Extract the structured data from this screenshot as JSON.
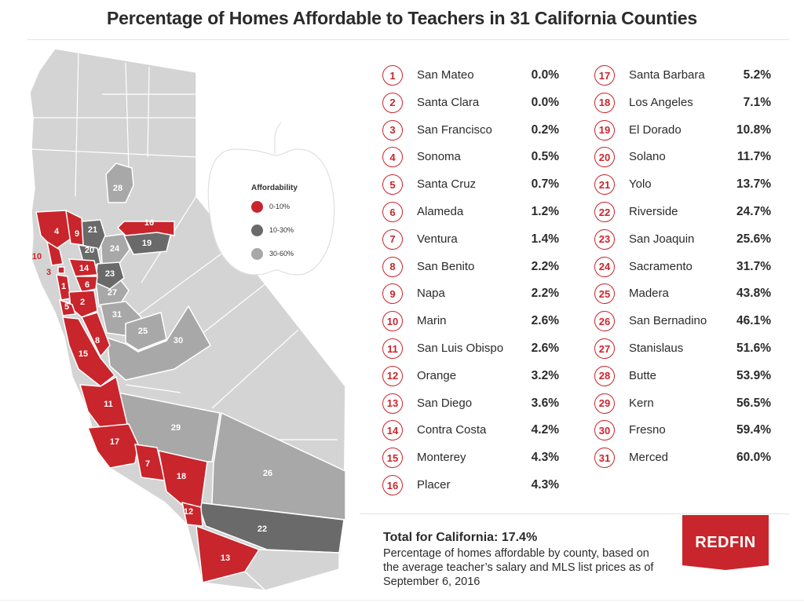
{
  "title": "Percentage of Homes Affordable to Teachers in 31 California Counties",
  "legend": {
    "title": "Affordability",
    "items": [
      {
        "label": "0-10%",
        "color": "#c9252c"
      },
      {
        "label": "10-30%",
        "color": "#6a6a6a"
      },
      {
        "label": "30-60%",
        "color": "#a8a8a8"
      }
    ],
    "icon": "apple-outline-icon"
  },
  "colors": {
    "accent": "#c9252c",
    "land": "#d4d4d4",
    "mid_gray": "#a8a8a8",
    "dark_gray": "#6a6a6a"
  },
  "counties": [
    {
      "rank": "1",
      "name": "San Mateo",
      "pct": "0.0%"
    },
    {
      "rank": "2",
      "name": "Santa Clara",
      "pct": "0.0%"
    },
    {
      "rank": "3",
      "name": "San Francisco",
      "pct": "0.2%"
    },
    {
      "rank": "4",
      "name": "Sonoma",
      "pct": "0.5%"
    },
    {
      "rank": "5",
      "name": "Santa Cruz",
      "pct": "0.7%"
    },
    {
      "rank": "6",
      "name": "Alameda",
      "pct": "1.2%"
    },
    {
      "rank": "7",
      "name": "Ventura",
      "pct": "1.4%"
    },
    {
      "rank": "8",
      "name": "San Benito",
      "pct": "2.2%"
    },
    {
      "rank": "9",
      "name": "Napa",
      "pct": "2.2%"
    },
    {
      "rank": "10",
      "name": "Marin",
      "pct": "2.6%"
    },
    {
      "rank": "11",
      "name": "San Luis Obispo",
      "pct": "2.6%"
    },
    {
      "rank": "12",
      "name": "Orange",
      "pct": "3.2%"
    },
    {
      "rank": "13",
      "name": "San Diego",
      "pct": "3.6%"
    },
    {
      "rank": "14",
      "name": "Contra Costa",
      "pct": "4.2%"
    },
    {
      "rank": "15",
      "name": "Monterey",
      "pct": "4.3%"
    },
    {
      "rank": "16",
      "name": "Placer",
      "pct": "4.3%"
    },
    {
      "rank": "17",
      "name": "Santa Barbara",
      "pct": "5.2%"
    },
    {
      "rank": "18",
      "name": "Los Angeles",
      "pct": "7.1%"
    },
    {
      "rank": "19",
      "name": "El Dorado",
      "pct": "10.8%"
    },
    {
      "rank": "20",
      "name": "Solano",
      "pct": "11.7%"
    },
    {
      "rank": "21",
      "name": "Yolo",
      "pct": "13.7%"
    },
    {
      "rank": "22",
      "name": "Riverside",
      "pct": "24.7%"
    },
    {
      "rank": "23",
      "name": "San Joaquin",
      "pct": "25.6%"
    },
    {
      "rank": "24",
      "name": "Sacramento",
      "pct": "31.7%"
    },
    {
      "rank": "25",
      "name": "Madera",
      "pct": "43.8%"
    },
    {
      "rank": "26",
      "name": "San Bernadino",
      "pct": "46.1%"
    },
    {
      "rank": "27",
      "name": "Stanislaus",
      "pct": "51.6%"
    },
    {
      "rank": "28",
      "name": "Butte",
      "pct": "53.9%"
    },
    {
      "rank": "29",
      "name": "Kern",
      "pct": "56.5%"
    },
    {
      "rank": "30",
      "name": "Fresno",
      "pct": "59.4%"
    },
    {
      "rank": "31",
      "name": "Merced",
      "pct": "60.0%"
    }
  ],
  "footer": {
    "total": "Total for California: 17.4%",
    "note": "Percentage of homes affordable by county, based on the average teacher’s salary and MLS list prices as of September 6, 2016",
    "brand": "REDFIN"
  }
}
